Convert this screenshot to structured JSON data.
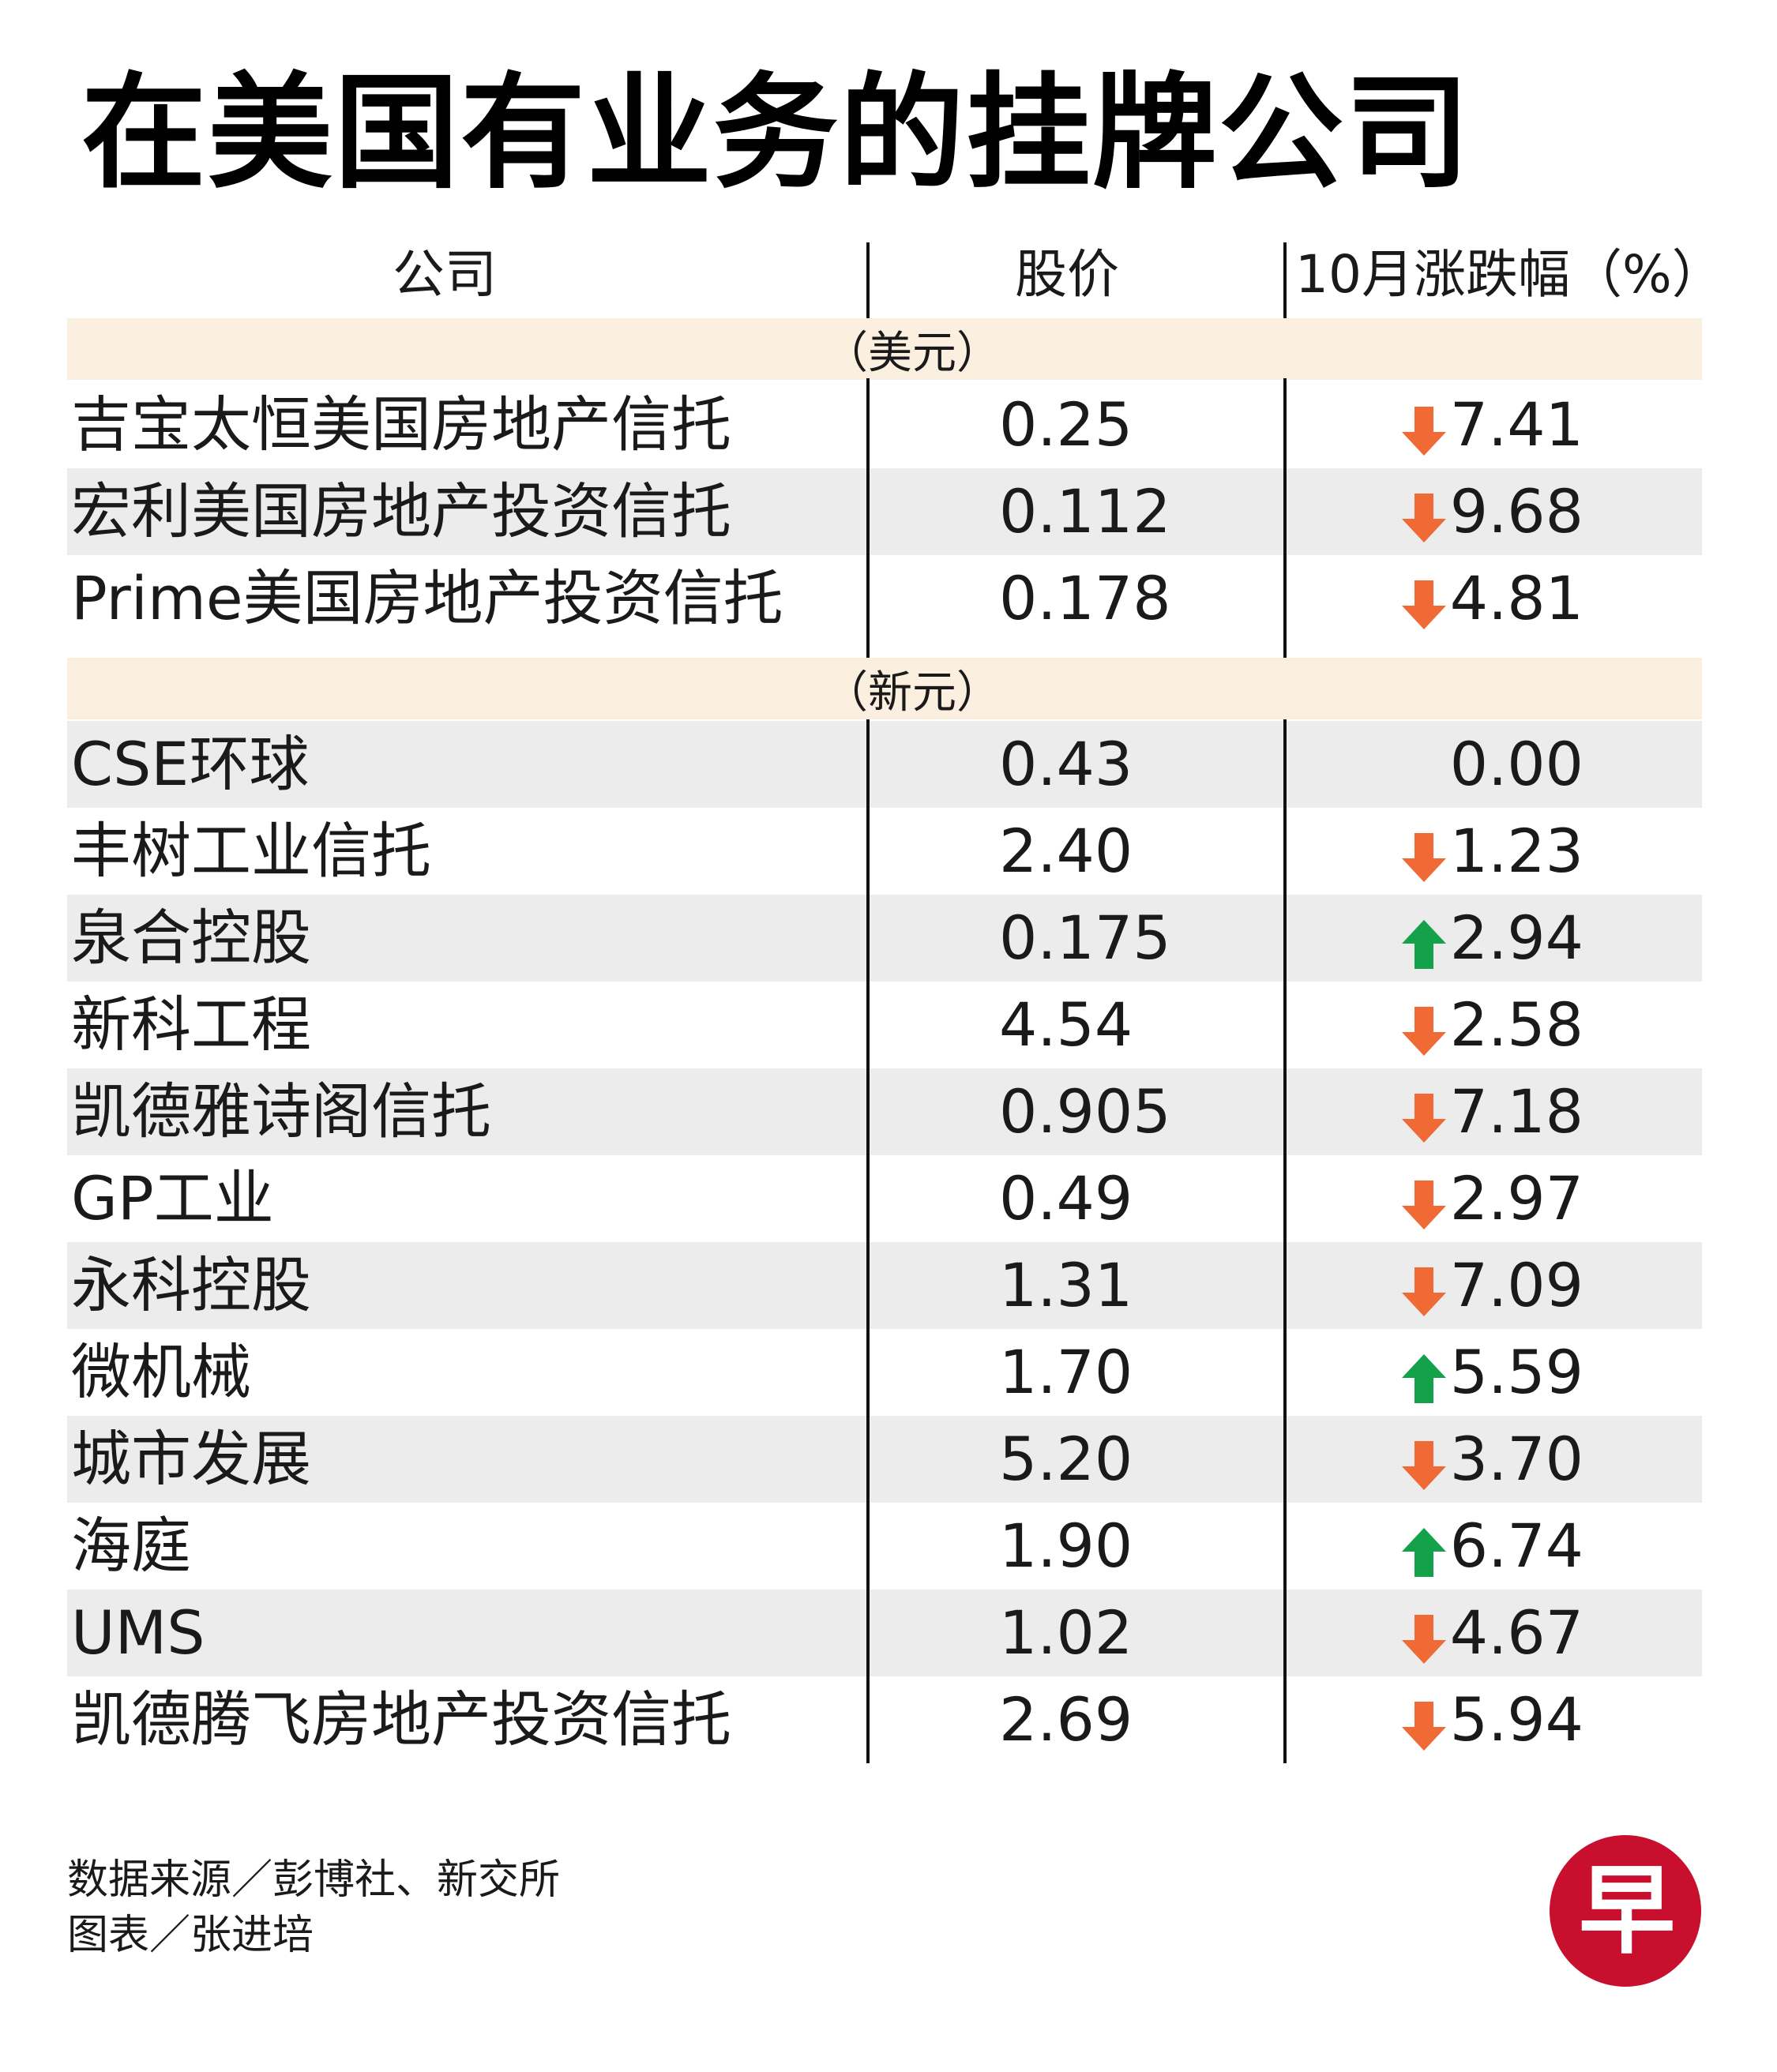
{
  "title": "在美国有业务的挂牌公司",
  "chart_data": {
    "type": "table",
    "columns": [
      "公司",
      "股价",
      "10月涨跌幅（%）"
    ],
    "colors": {
      "band": "#fbefe0",
      "stripe": "#ececec",
      "down": "#ef6a34",
      "up": "#13a24a",
      "logo": "#c8102e"
    },
    "groups": [
      {
        "currency": "（美元）",
        "rows": [
          {
            "company": "吉宝太恒美国房地产信托",
            "price": "0.25",
            "change": "7.41",
            "direction": "down"
          },
          {
            "company": "宏利美国房地产投资信托",
            "price": "0.112",
            "change": "9.68",
            "direction": "down"
          },
          {
            "company": "Prime美国房地产投资信托",
            "price": "0.178",
            "change": "4.81",
            "direction": "down"
          }
        ]
      },
      {
        "currency": "（新元）",
        "rows": [
          {
            "company": "CSE环球",
            "price": "0.43",
            "change": "0.00",
            "direction": "none"
          },
          {
            "company": "丰树工业信托",
            "price": "2.40",
            "change": "1.23",
            "direction": "down"
          },
          {
            "company": "泉合控股",
            "price": "0.175",
            "change": "2.94",
            "direction": "up"
          },
          {
            "company": "新科工程",
            "price": "4.54",
            "change": "2.58",
            "direction": "down"
          },
          {
            "company": "凯德雅诗阁信托",
            "price": "0.905",
            "change": "7.18",
            "direction": "down"
          },
          {
            "company": "GP工业",
            "price": "0.49",
            "change": "2.97",
            "direction": "down"
          },
          {
            "company": "永科控股",
            "price": "1.31",
            "change": "7.09",
            "direction": "down"
          },
          {
            "company": "微机械",
            "price": "1.70",
            "change": "5.59",
            "direction": "up"
          },
          {
            "company": "城市发展",
            "price": "5.20",
            "change": "3.70",
            "direction": "down"
          },
          {
            "company": "海庭",
            "price": "1.90",
            "change": "6.74",
            "direction": "up"
          },
          {
            "company": "UMS",
            "price": "1.02",
            "change": "4.67",
            "direction": "down"
          },
          {
            "company": "凯德腾飞房地产投资信托",
            "price": "2.69",
            "change": "5.94",
            "direction": "down"
          }
        ]
      }
    ]
  },
  "footer": {
    "source": "数据来源／彭博社、新交所",
    "credit": "图表／张进培"
  },
  "logo": {
    "char": "早",
    "icon": "zaobao-logo-icon"
  }
}
